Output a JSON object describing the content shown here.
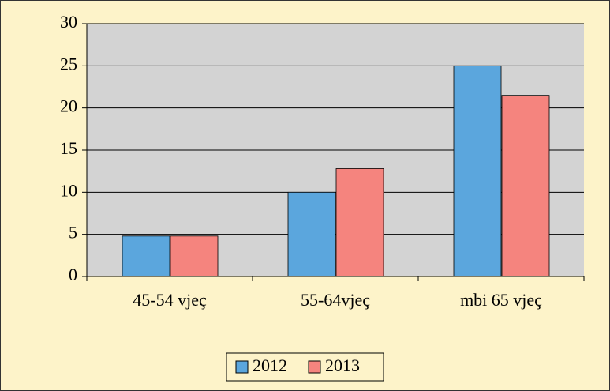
{
  "chart_data": {
    "type": "bar",
    "categories": [
      "45-54 vjeç",
      "55-64vjeç",
      "mbi 65 vjeç"
    ],
    "series": [
      {
        "name": "2012",
        "color": "#5ba6dd",
        "values": [
          4.8,
          10,
          25
        ]
      },
      {
        "name": "2013",
        "color": "#f5847e",
        "values": [
          4.8,
          12.8,
          21.5
        ]
      }
    ],
    "ylim": [
      0,
      30
    ],
    "yticks": [
      0,
      5,
      10,
      15,
      20,
      25,
      30
    ],
    "grid": true,
    "legend": "bottom"
  }
}
